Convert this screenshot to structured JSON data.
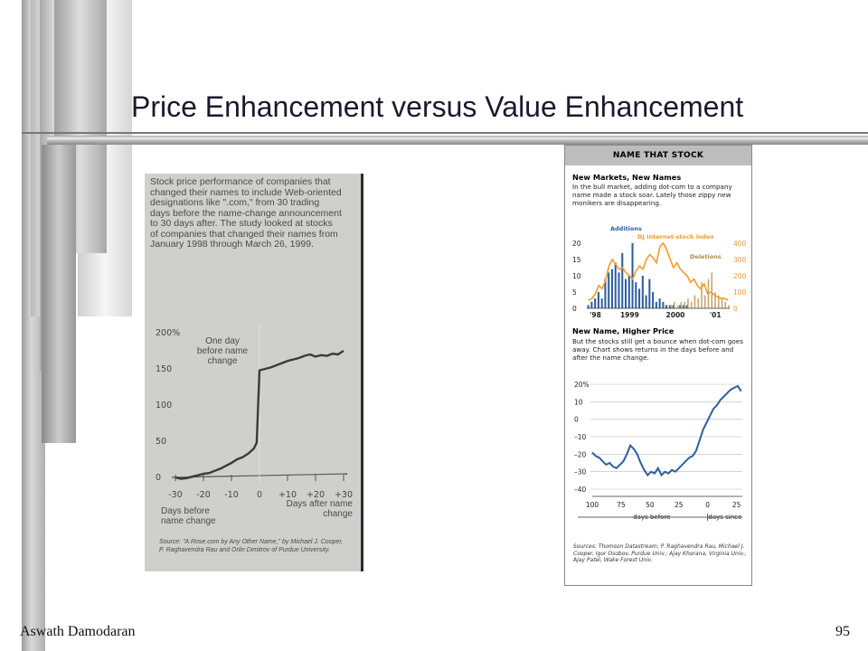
{
  "slide": {
    "title": "Price Enhancement versus Value Enhancement",
    "author": "Aswath Damodaran",
    "page_number": "95"
  },
  "left_figure": {
    "caption": "Stock price performance of companies that changed their names to include Web-oriented designations like \".com,\" from 30 trading days before the name-change announcement to 30 days after. The study looked at stocks of companies that changed their names from January 1998 through March 26, 1999.",
    "annotation": "One day before name change",
    "xlabel_left": "Days before name change",
    "xlabel_right": "Days after name change",
    "source": "Source: \"A Rose.com by Any Other Name,\" by Michael J. Cooper, P. Raghavendra Rau and Orlin Dimitrov of Purdue University.",
    "chart_data": {
      "type": "line",
      "x_ticks": [
        "-30",
        "-20",
        "-10",
        "0",
        "+10",
        "+20",
        "+30"
      ],
      "y_ticks": [
        "200%",
        "150",
        "100",
        "50",
        "0"
      ],
      "ylim": [
        0,
        200
      ],
      "xlim": [
        -30,
        30
      ],
      "x": [
        -30,
        -28,
        -26,
        -24,
        -22,
        -20,
        -18,
        -16,
        -14,
        -12,
        -10,
        -8,
        -6,
        -4,
        -2,
        -1,
        0,
        2,
        4,
        6,
        8,
        10,
        12,
        14,
        16,
        18,
        20,
        22,
        24,
        26,
        28,
        30
      ],
      "y": [
        0,
        -2,
        -1,
        1,
        3,
        5,
        6,
        9,
        12,
        16,
        20,
        25,
        28,
        33,
        40,
        48,
        148,
        150,
        152,
        155,
        158,
        161,
        163,
        165,
        168,
        170,
        167,
        169,
        168,
        171,
        170,
        175
      ]
    }
  },
  "right_figure": {
    "header": "NAME THAT STOCK",
    "top_title": "New Markets, New Names",
    "top_text": "In the bull market, adding dot-com to a company name made a stock soar. Lately those zippy new monikers are disappearing.",
    "label_additions": "Additions",
    "label_index": "DJ Internet-stock index",
    "label_deletions": "Deletions",
    "bottom_title": "New Name, Higher Price",
    "bottom_text": "But the stocks still get a bounce when dot-com goes away. Chart shows returns in the days before and after the name change.",
    "days_before": "days before",
    "days_since": "days since",
    "sources": "Sources: Thomson Datastream; P. Raghavendra Rau, Michael J. Cooper, Igor Osobov, Purdue Univ.; Ajay Khorana, Virginia Univ.; Ajay Patel, Wake Forest Univ.",
    "chart_data": [
      {
        "type": "bar",
        "title": "New Markets, New Names",
        "x_ticks": [
          "'98",
          "1999",
          "2000",
          "'01"
        ],
        "y_ticks_left": [
          "20",
          "15",
          "10",
          "5",
          "0"
        ],
        "y_ticks_right": [
          "400",
          "300",
          "200",
          "100",
          "0"
        ],
        "ylim_left": [
          0,
          20
        ],
        "ylim_right": [
          0,
          400
        ],
        "series": [
          {
            "name": "Additions",
            "color": "#2f5f9e",
            "values": [
              1,
              2,
              3,
              5,
              3,
              9,
              11,
              12,
              14,
              11,
              17,
              9,
              10,
              20,
              8,
              6,
              10,
              4,
              9,
              5,
              2,
              3,
              2,
              1,
              1,
              1,
              0,
              1,
              1,
              1,
              0,
              0,
              0,
              0,
              0,
              0,
              0,
              0,
              0,
              0,
              0,
              0
            ]
          },
          {
            "name": "Deletions",
            "color": "#c8a168",
            "values": [
              0,
              0,
              0,
              0,
              0,
              0,
              0,
              0,
              0,
              0,
              0,
              0,
              0,
              0,
              0,
              0,
              0,
              0,
              0,
              0,
              0,
              0,
              1,
              0,
              1,
              2,
              1,
              2,
              2,
              3,
              2,
              4,
              3,
              8,
              4,
              9,
              11,
              5,
              4,
              3,
              2,
              1
            ]
          },
          {
            "name": "DJ Internet-stock index",
            "color": "#f39a2b",
            "values": [
              50,
              60,
              90,
              140,
              120,
              170,
              260,
              300,
              270,
              240,
              250,
              220,
              200,
              180,
              230,
              260,
              240,
              300,
              330,
              310,
              280,
              380,
              400,
              360,
              300,
              250,
              280,
              240,
              220,
              200,
              160,
              180,
              140,
              120,
              150,
              90,
              100,
              80,
              70,
              60,
              60,
              50
            ]
          }
        ]
      },
      {
        "type": "line",
        "title": "New Name, Higher Price",
        "x_ticks": [
          "100",
          "75",
          "50",
          "25",
          "0",
          "25"
        ],
        "y_ticks": [
          "20%",
          "10",
          "0",
          "–10",
          "–20",
          "–30",
          "–40"
        ],
        "ylim": [
          -40,
          20
        ],
        "xlim": [
          -100,
          30
        ],
        "x": [
          -100,
          -97,
          -94,
          -91,
          -88,
          -85,
          -82,
          -79,
          -76,
          -73,
          -70,
          -67,
          -64,
          -61,
          -58,
          -55,
          -52,
          -49,
          -46,
          -43,
          -40,
          -37,
          -34,
          -31,
          -28,
          -25,
          -22,
          -19,
          -16,
          -13,
          -10,
          -7,
          -4,
          -1,
          2,
          5,
          8,
          11,
          14,
          17,
          20,
          23,
          26,
          29
        ],
        "y": [
          -19,
          -21,
          -22,
          -24,
          -26,
          -25,
          -27,
          -28,
          -26,
          -24,
          -20,
          -15,
          -17,
          -20,
          -25,
          -29,
          -32,
          -30,
          -31,
          -28,
          -32,
          -30,
          -31,
          -29,
          -30,
          -28,
          -26,
          -24,
          -22,
          -21,
          -18,
          -12,
          -6,
          -2,
          2,
          6,
          8,
          11,
          13,
          15,
          17,
          18,
          19,
          16
        ]
      }
    ]
  }
}
